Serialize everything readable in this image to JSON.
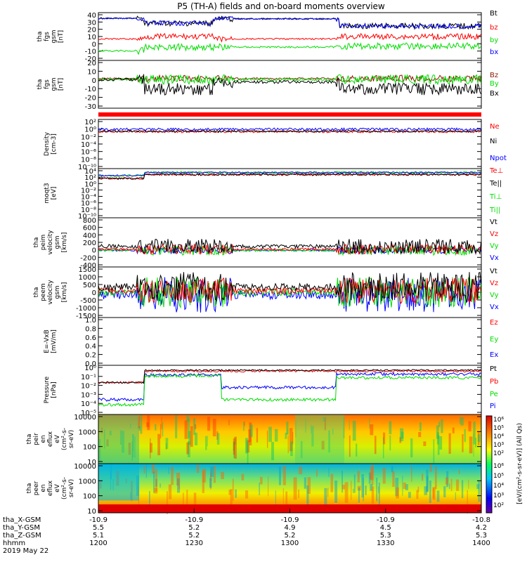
{
  "title": "P5 (TH-A) fields and on-board moments overview",
  "colors": {
    "black": "#000000",
    "red": "#ff0000",
    "green": "#00dd00",
    "blue": "#0000ff",
    "darkred": "#8b1a00"
  },
  "chart_data": {
    "type": "line",
    "x_ticks": [
      "1200",
      "1230",
      "1300",
      "1330",
      "1400"
    ],
    "x_range": [
      1200,
      1400
    ],
    "ephemeris": {
      "labels": [
        "tha_X-GSM",
        "tha_Y-GSM",
        "tha_Z-GSM",
        "hhmm",
        "2019 May 22"
      ],
      "x_gsm": [
        "-10.9",
        "-10.9",
        "-10.9",
        "-10.9",
        "-10.8"
      ],
      "y_gsm": [
        "5.5",
        "5.2",
        "4.9",
        "4.5",
        "4.2"
      ],
      "z_gsm": [
        "5.1",
        "5.2",
        "5.2",
        "5.3",
        "5.3"
      ]
    },
    "panels": [
      {
        "ylabel": [
          "tha",
          "fgs",
          "gsm",
          "[nT]"
        ],
        "yticks": [
          "40",
          "30",
          "20",
          "10",
          "0",
          "-10",
          "-20"
        ],
        "ylim": [
          -20,
          40
        ],
        "legend": [
          {
            "name": "Bt",
            "color": "#000000"
          },
          {
            "name": "bz",
            "color": "#ff0000"
          },
          {
            "name": "by",
            "color": "#00dd00"
          },
          {
            "name": "bx",
            "color": "#0000ff"
          }
        ]
      },
      {
        "ylabel": [
          "tha",
          "fgs",
          "gsm",
          "[nT]"
        ],
        "yticks": [
          "20",
          "10",
          "0",
          "-10",
          "-20",
          "-30"
        ],
        "ylim": [
          -35,
          20
        ],
        "legend": [
          {
            "name": "Bz",
            "color": "#8b1a00"
          },
          {
            "name": "By",
            "color": "#00dd00"
          },
          {
            "name": "Bx",
            "color": "#000000"
          }
        ]
      },
      {
        "ylabel": [
          "Density",
          "[cm-3]"
        ],
        "yticks": [
          "10²",
          "10⁰",
          "10⁻²",
          "10⁻⁴",
          "10⁻⁶",
          "10⁻⁸",
          "10⁻¹⁰"
        ],
        "ylim": [
          -10,
          2
        ],
        "legend": [
          {
            "name": "Ne",
            "color": "#ff0000"
          },
          {
            "name": "Ni",
            "color": "#000000"
          },
          {
            "name": "Npot",
            "color": "#0000ff"
          }
        ]
      },
      {
        "ylabel": [
          "moqt3",
          "[eV]"
        ],
        "yticks": [
          "10⁴",
          "10²",
          "10⁰",
          "10⁻²",
          "10⁻⁴",
          "10⁻⁶",
          "10⁻⁸",
          "10⁻¹⁰"
        ],
        "ylim": [
          -10,
          4
        ],
        "legend": [
          {
            "name": "Te⊥",
            "color": "#ff0000"
          },
          {
            "name": "Te||",
            "color": "#000000"
          },
          {
            "name": "Ti⊥",
            "color": "#00dd00"
          },
          {
            "name": "Ti||",
            "color": "#00dd00"
          }
        ]
      },
      {
        "ylabel": [
          "tha",
          "peim",
          "velocity",
          "gsm",
          "[km/s]"
        ],
        "yticks": [
          "800",
          "600",
          "400",
          "200",
          "0",
          "-200",
          "-400"
        ],
        "ylim": [
          -400,
          800
        ],
        "legend": [
          {
            "name": "Vt",
            "color": "#000000"
          },
          {
            "name": "Vz",
            "color": "#ff0000"
          },
          {
            "name": "Vy",
            "color": "#00dd00"
          },
          {
            "name": "Vx",
            "color": "#0000ff"
          }
        ]
      },
      {
        "ylabel": [
          "tha",
          "peem",
          "velocity",
          "gsm",
          "[km/s]"
        ],
        "yticks": [
          "1500",
          "1000",
          "500",
          "0",
          "-500",
          "-1000",
          "-1500"
        ],
        "ylim": [
          -1500,
          1500
        ],
        "legend": [
          {
            "name": "Vt",
            "color": "#000000"
          },
          {
            "name": "Vz",
            "color": "#ff0000"
          },
          {
            "name": "Vy",
            "color": "#00dd00"
          },
          {
            "name": "Vx",
            "color": "#0000ff"
          }
        ]
      },
      {
        "ylabel": [
          "E=-VxB",
          "[mV/m]"
        ],
        "yticks": [
          "1.0",
          "0.8",
          "0.6",
          "0.4",
          "0.2",
          "0.0"
        ],
        "ylim": [
          0,
          1
        ],
        "legend": [
          {
            "name": "Ez",
            "color": "#ff0000"
          },
          {
            "name": "Ey",
            "color": "#00dd00"
          },
          {
            "name": "Ex",
            "color": "#0000ff"
          }
        ]
      },
      {
        "ylabel": [
          "Pressure",
          "[nPa]"
        ],
        "yticks": [
          "10⁰",
          "10⁻¹",
          "10⁻²",
          "10⁻³",
          "10⁻⁴",
          "10⁻⁵"
        ],
        "ylim": [
          -5,
          0
        ],
        "legend": [
          {
            "name": "Pt",
            "color": "#000000"
          },
          {
            "name": "Pb",
            "color": "#ff0000"
          },
          {
            "name": "Pe",
            "color": "#00dd00"
          },
          {
            "name": "Pi",
            "color": "#0000ff"
          }
        ]
      },
      {
        "ylabel": [
          "tha",
          "peir",
          "en",
          "eflux",
          "eV",
          "(cm²-s-",
          "sr-eV)"
        ],
        "yticks": [
          "10000",
          "1000",
          "100",
          "10"
        ],
        "ylim": [
          10,
          30000
        ]
      },
      {
        "ylabel": [
          "tha",
          "peer",
          "en",
          "eflux",
          "eV",
          "(cm²-s-",
          "sr-eV)"
        ],
        "yticks": [
          "10000",
          "1000",
          "100",
          "10"
        ],
        "ylim": [
          10,
          30000
        ]
      }
    ],
    "colorbar": {
      "label": "[eV/(cm²-s-sr-eV)] (All Qs)",
      "ticks_top": [
        "10⁶",
        "10⁵",
        "10⁴",
        "10³",
        "10²"
      ],
      "ticks_bottom": [
        "10⁶",
        "10⁵",
        "10⁴",
        "10³",
        "10²"
      ]
    }
  }
}
